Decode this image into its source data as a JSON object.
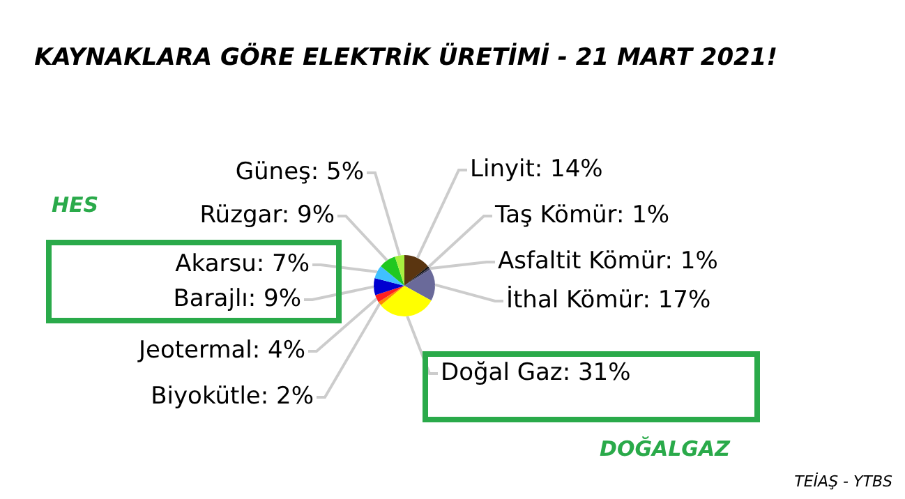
{
  "chart_data": {
    "type": "pie",
    "title": "KAYNAKLARA GÖRE ELEKTRİK ÜRETİMİ - 21 MART 2021!",
    "categories": [
      "Linyit",
      "Taş Kömür",
      "Asfaltit Kömür",
      "İthal Kömür",
      "Doğal Gaz",
      "Biyokütle",
      "Jeotermal",
      "Barajlı",
      "Akarsu",
      "Rüzgar",
      "Güneş"
    ],
    "values": [
      14,
      1,
      1,
      17,
      31,
      2,
      4,
      9,
      7,
      9,
      5
    ],
    "value_labels": [
      "14%",
      "1%",
      "1%",
      "17%",
      "31%",
      "2%",
      "4%",
      "9%",
      "7%",
      "9%",
      "5%"
    ],
    "colors": [
      "#5a3510",
      "#111111",
      "#3a3a5a",
      "#6a6a9a",
      "#ffff00",
      "#ff8800",
      "#ff2020",
      "#0000d0",
      "#40c0ff",
      "#20c820",
      "#a8f040"
    ],
    "annotations": [
      "HES",
      "DOĞALGAZ",
      "TEİAŞ - YTBS"
    ],
    "legend": false
  }
}
